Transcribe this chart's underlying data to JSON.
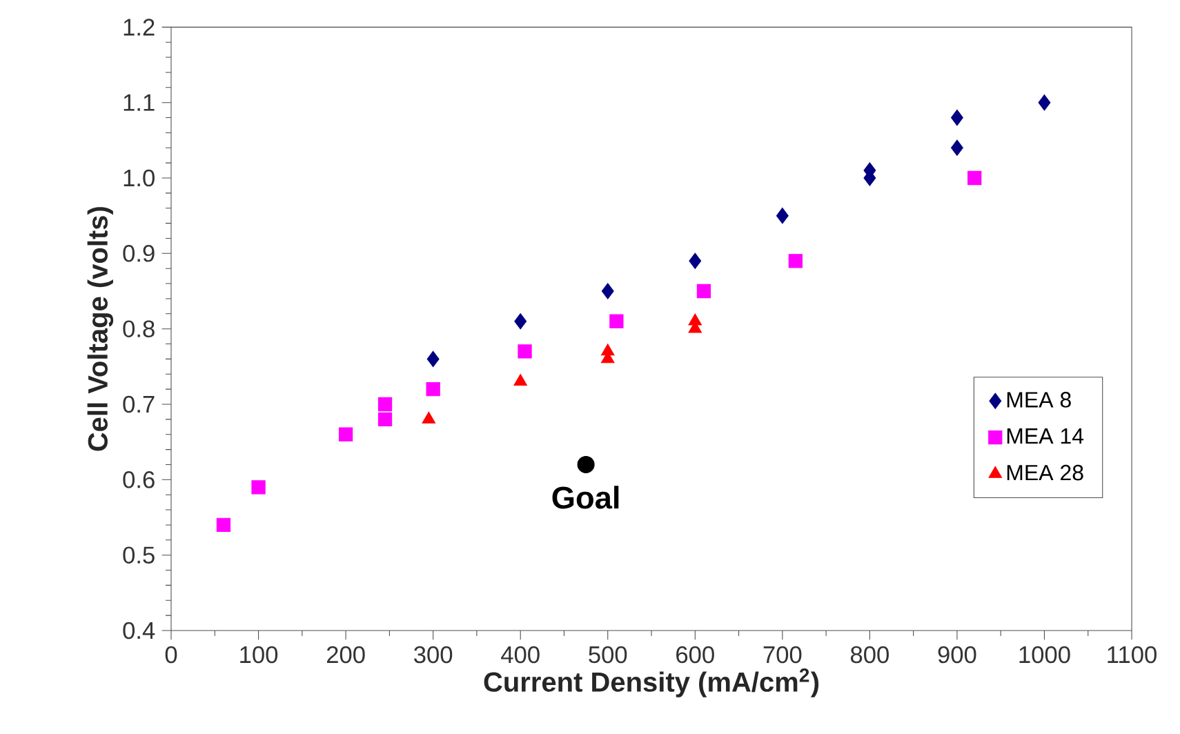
{
  "chart_data": {
    "type": "scatter",
    "xlabel": "Current Density (mA/cm$^{2}$)",
    "ylabel": "Cell Voltage (volts)",
    "xlim": [
      0,
      1100
    ],
    "xticks": [
      0,
      100,
      200,
      300,
      400,
      500,
      600,
      700,
      800,
      900,
      1000,
      1100
    ],
    "ylim": [
      0.4,
      1.2
    ],
    "yticks": [
      0.4,
      0.5,
      0.6,
      0.7,
      0.8,
      0.9,
      {
        "value": 1.0,
        "label": "1.0"
      },
      1.1,
      1.2
    ],
    "grid": false,
    "legend": "right",
    "series": [
      {
        "name": "MEA 8",
        "color": "#000080",
        "marker": "diamond",
        "x": [
          300,
          400,
          500,
          600,
          700,
          800,
          800,
          900,
          900,
          1000
        ],
        "values": [
          0.76,
          0.81,
          0.85,
          0.89,
          0.95,
          1.0,
          1.01,
          1.04,
          1.08,
          1.1
        ]
      },
      {
        "name": "MEA 14",
        "color": "#ff00ff",
        "marker": "square",
        "x": [
          60,
          100,
          200,
          245,
          245,
          300,
          405,
          510,
          610,
          715,
          920
        ],
        "values": [
          0.54,
          0.59,
          0.66,
          0.68,
          0.7,
          0.72,
          0.77,
          0.81,
          0.85,
          0.89,
          1.0
        ]
      },
      {
        "name": "MEA 28",
        "color": "#ff0000",
        "marker": "triangle",
        "x": [
          295,
          400,
          500,
          500,
          600,
          600
        ],
        "values": [
          0.68,
          0.73,
          0.76,
          0.77,
          0.8,
          0.81
        ]
      },
      {
        "color": "#000000",
        "marker": "circle",
        "x": [
          475
        ],
        "values": [
          0.62
        ]
      }
    ],
    "annotations": [
      {
        "text": "Goal",
        "x": 475,
        "y": 0.62
      }
    ]
  }
}
